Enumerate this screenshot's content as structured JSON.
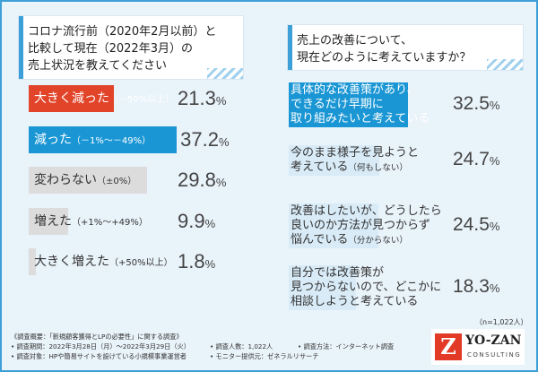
{
  "left_question": {
    "line1": "コロナ流行前（2020年2月以前）と",
    "line2": "比較して現在（2022年3月）の",
    "line3": "売上状況を教えてください"
  },
  "right_question": {
    "line1": "売上の改善について、",
    "line2": "現在どのように考えていますか？"
  },
  "colors": {
    "red": "#e2442a",
    "blue": "#1a96d4",
    "gray": "#dcdcdc",
    "light_blue": "#d8ebf7",
    "frame": "#3d9fd8"
  },
  "chart_data": [
    {
      "type": "bar",
      "orientation": "horizontal",
      "categories": [
        "大きく減った",
        "減った",
        "変わらない",
        "増えた",
        "大きく増えた"
      ],
      "category_notes": [
        "（－50%以上）",
        "（－1%～－49%）",
        "（±0%）",
        "（+1%～+49%）",
        "（+50%以上）"
      ],
      "values": [
        21.3,
        37.2,
        29.8,
        9.9,
        1.8
      ],
      "value_labels": [
        "21.3",
        "37.2",
        "29.8",
        "9.9",
        "1.8"
      ],
      "unit": "%",
      "xlim": [
        0,
        100
      ]
    },
    {
      "type": "bar",
      "orientation": "horizontal",
      "categories": [
        [
          "具体的な改善策があり、",
          "できるだけ早期に",
          "取り組みたいと考えている"
        ],
        [
          "今のまま様子を見ようと",
          "考えている"
        ],
        [
          "改善はしたいが、どうしたら",
          "良いのか方法が見つからず",
          "悩んでいる"
        ],
        [
          "自分では改善策が",
          "見つからないので、どこかに",
          "相談しようと考えている"
        ]
      ],
      "category_notes": [
        "",
        "（何もしない）",
        "（分からない）",
        ""
      ],
      "values": [
        32.5,
        24.7,
        24.5,
        18.3
      ],
      "value_labels": [
        "32.5",
        "24.7",
        "24.5",
        "18.3"
      ],
      "unit": "%",
      "xlim": [
        0,
        100
      ],
      "note": "（n=1,022人）"
    }
  ],
  "footer": {
    "survey_title": "《調査概要：「新規顧客獲得とLPの必要性」に関する調査》",
    "period": "• 調査期間：2022年3月28日（月）～2022年3月29日（火）",
    "respondents": "• 調査人数：1,022人",
    "method": "• 調査方法：インターネット調査",
    "target": "• 調査対象：HPや簡易サイトを設けている小規模事業運営者",
    "provider": "• モニター提供元：ゼネラルリサーチ"
  },
  "logo": {
    "mark": "Z",
    "name": "YO-ZAN",
    "sub": "CONSULTING"
  }
}
